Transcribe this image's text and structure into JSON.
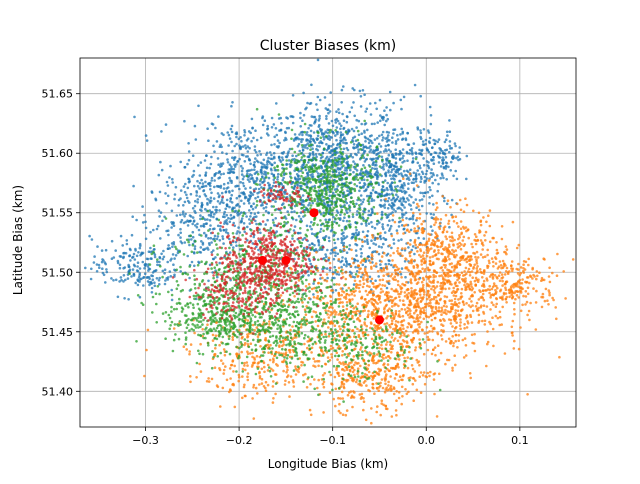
{
  "chart_data": {
    "type": "scatter",
    "title": "Cluster Biases (km)",
    "xlabel": "Longitude Bias (km)",
    "ylabel": "Latitude Bias (km)",
    "xlim": [
      -0.37,
      0.16
    ],
    "ylim": [
      51.37,
      51.68
    ],
    "xticks": [
      -0.3,
      -0.2,
      -0.1,
      0.0,
      0.1
    ],
    "xtick_labels": [
      "−0.3",
      "−0.2",
      "−0.1",
      "0.0",
      "0.1"
    ],
    "yticks": [
      51.4,
      51.45,
      51.5,
      51.55,
      51.6,
      51.65
    ],
    "ytick_labels": [
      "51.40",
      "51.45",
      "51.50",
      "51.55",
      "51.60",
      "51.65"
    ],
    "grid": true,
    "series": [
      {
        "color": "#1f77b4",
        "regions": [
          {
            "cx": -0.1,
            "cy": 51.59,
            "rx": 0.06,
            "ry": 0.045,
            "n": 900
          },
          {
            "cx": -0.03,
            "cy": 51.57,
            "rx": 0.035,
            "ry": 0.05,
            "n": 450
          },
          {
            "cx": -0.19,
            "cy": 51.58,
            "rx": 0.06,
            "ry": 0.04,
            "n": 550
          },
          {
            "cx": -0.24,
            "cy": 51.54,
            "rx": 0.05,
            "ry": 0.035,
            "n": 300
          },
          {
            "cx": -0.31,
            "cy": 51.505,
            "rx": 0.04,
            "ry": 0.02,
            "n": 200
          },
          {
            "cx": -0.09,
            "cy": 51.52,
            "rx": 0.05,
            "ry": 0.03,
            "n": 280
          },
          {
            "cx": 0.015,
            "cy": 51.595,
            "rx": 0.02,
            "ry": 0.02,
            "n": 120
          }
        ]
      },
      {
        "color": "#ff7f0e",
        "regions": [
          {
            "cx": -0.03,
            "cy": 51.47,
            "rx": 0.09,
            "ry": 0.04,
            "n": 1100
          },
          {
            "cx": 0.02,
            "cy": 51.51,
            "rx": 0.05,
            "ry": 0.04,
            "n": 500
          },
          {
            "cx": 0.09,
            "cy": 51.49,
            "rx": 0.045,
            "ry": 0.02,
            "n": 250
          },
          {
            "cx": -0.06,
            "cy": 51.41,
            "rx": 0.05,
            "ry": 0.025,
            "n": 300
          },
          {
            "cx": -0.17,
            "cy": 51.43,
            "rx": 0.07,
            "ry": 0.03,
            "n": 350
          }
        ]
      },
      {
        "color": "#2ca02c",
        "regions": [
          {
            "cx": -0.11,
            "cy": 51.57,
            "rx": 0.05,
            "ry": 0.035,
            "n": 550
          },
          {
            "cx": -0.19,
            "cy": 51.49,
            "rx": 0.07,
            "ry": 0.04,
            "n": 600
          },
          {
            "cx": -0.15,
            "cy": 51.45,
            "rx": 0.06,
            "ry": 0.03,
            "n": 350
          },
          {
            "cx": -0.23,
            "cy": 51.46,
            "rx": 0.04,
            "ry": 0.02,
            "n": 200
          },
          {
            "cx": -0.07,
            "cy": 51.44,
            "rx": 0.05,
            "ry": 0.03,
            "n": 180
          }
        ]
      },
      {
        "color": "#d62728",
        "regions": [
          {
            "cx": -0.17,
            "cy": 51.51,
            "rx": 0.04,
            "ry": 0.025,
            "n": 450
          },
          {
            "cx": -0.2,
            "cy": 51.485,
            "rx": 0.04,
            "ry": 0.02,
            "n": 200
          },
          {
            "cx": -0.155,
            "cy": 51.565,
            "rx": 0.02,
            "ry": 0.01,
            "n": 60
          }
        ]
      }
    ],
    "centroids": {
      "color": "#ff0000",
      "points": [
        {
          "x": -0.12,
          "y": 51.55
        },
        {
          "x": -0.175,
          "y": 51.51
        },
        {
          "x": -0.15,
          "y": 51.51
        },
        {
          "x": -0.05,
          "y": 51.46
        }
      ]
    }
  }
}
